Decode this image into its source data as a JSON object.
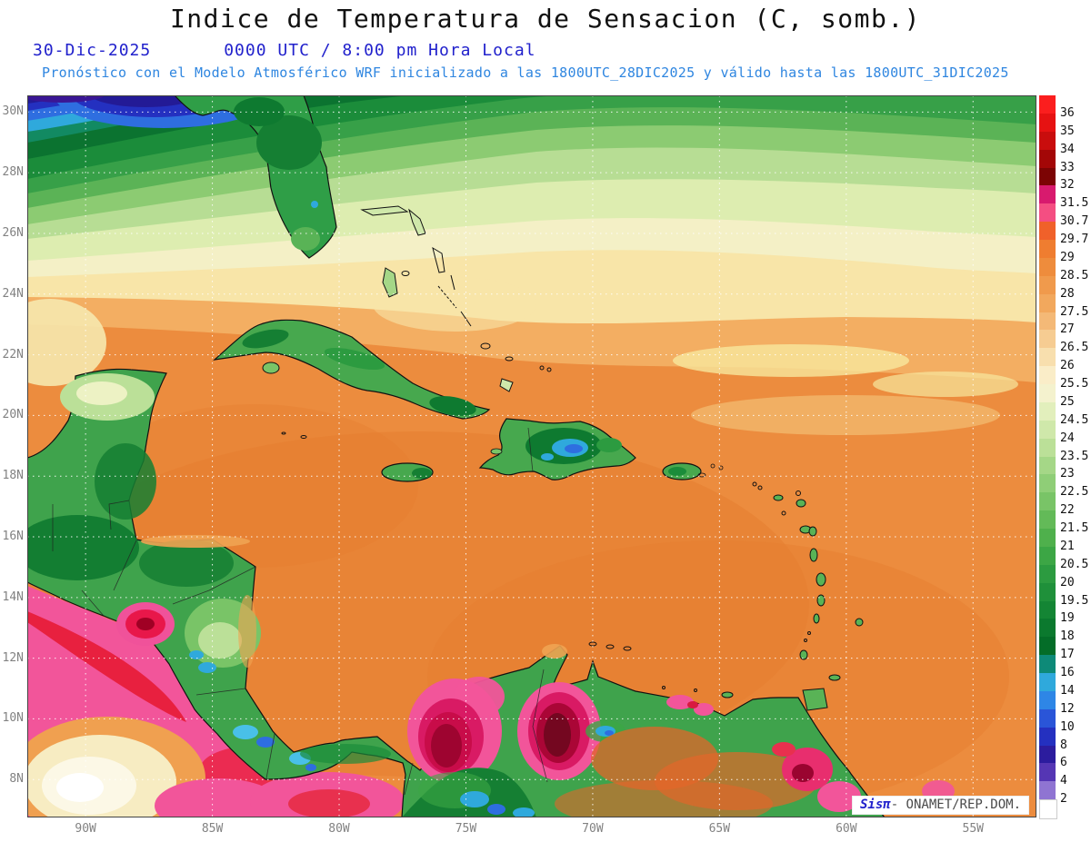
{
  "header": {
    "title": "Indice de Temperatura de Sensacion (C, somb.)",
    "date": "30-Dic-2025",
    "time": "0000 UTC / 8:00 pm Hora Local",
    "forecast_note": "Pronóstico con el Modelo Atmosférico WRF inicializado a las 1800UTC_28DIC2025 y válido hasta las  1800UTC_31DIC2025"
  },
  "map": {
    "lat_ticks": [
      "30N",
      "28N",
      "26N",
      "24N",
      "22N",
      "20N",
      "18N",
      "16N",
      "14N",
      "12N",
      "10N",
      "8N"
    ],
    "lon_ticks": [
      "90W",
      "85W",
      "80W",
      "75W",
      "70W",
      "65W",
      "60W",
      "55W"
    ],
    "watermark": {
      "logo": "Sisπ",
      "org": "- ONAMET/REP.DOM."
    }
  },
  "colorbar": {
    "unit": "C",
    "labels": [
      "36",
      "35",
      "34",
      "33",
      "32",
      "31.5",
      "30.7",
      "29.7",
      "29",
      "28.5",
      "28",
      "27.5",
      "27",
      "26.5",
      "26",
      "25.5",
      "25",
      "24.5",
      "24",
      "23.5",
      "23",
      "22.5",
      "22",
      "21.5",
      "21",
      "20.5",
      "20",
      "19.5",
      "19",
      "18",
      "17",
      "16",
      "14",
      "12",
      "10",
      "8",
      "6",
      "4",
      "2"
    ],
    "colors": [
      "#FB1E1E",
      "#E61212",
      "#C90D0D",
      "#A30707",
      "#7C0404",
      "#D81A6E",
      "#F44E82",
      "#F0612A",
      "#EF7D30",
      "#EE8C3C",
      "#F09A4C",
      "#F2A85D",
      "#F4B977",
      "#F6CC92",
      "#F8DFAE",
      "#FAEDC8",
      "#F4F2CE",
      "#E2EFBC",
      "#CFE8AA",
      "#BBE098",
      "#A5D787",
      "#8FCE77",
      "#79C467",
      "#63BA58",
      "#4FB04C",
      "#3CA645",
      "#2C9B40",
      "#1F903A",
      "#148534",
      "#0B792E",
      "#046D28",
      "#0E8A78",
      "#2FA9DC",
      "#2E86E6",
      "#2A55D8",
      "#2430C0",
      "#2C1C9E",
      "#5536B4",
      "#8F74D2",
      "#FFFFFF"
    ]
  }
}
